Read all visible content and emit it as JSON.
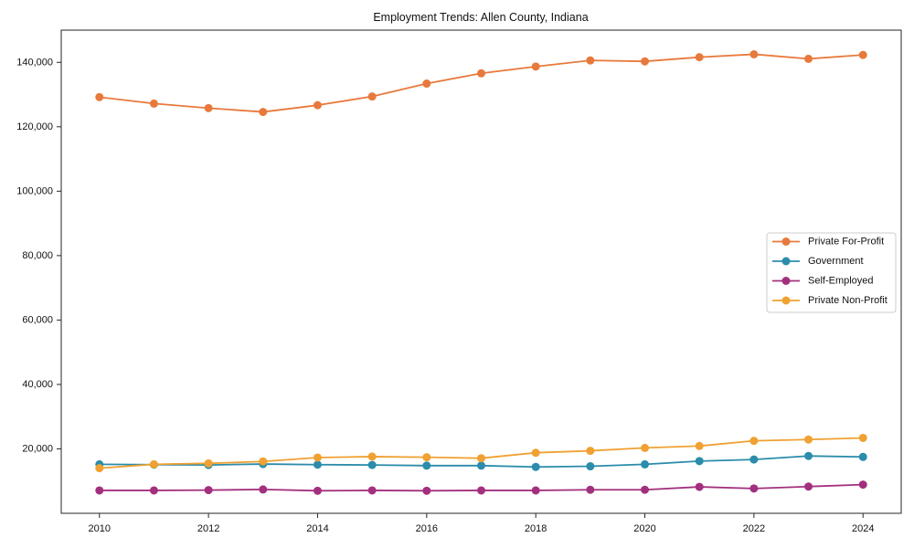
{
  "chart_data": {
    "type": "line",
    "title": "Employment Trends: Allen County, Indiana",
    "xlabel": "",
    "ylabel": "",
    "x": [
      2010,
      2011,
      2012,
      2013,
      2014,
      2015,
      2016,
      2017,
      2018,
      2019,
      2020,
      2021,
      2022,
      2023,
      2024
    ],
    "x_tick_labels": [
      "2010",
      "2012",
      "2014",
      "2016",
      "2018",
      "2020",
      "2022",
      "2024"
    ],
    "x_ticks": [
      2010,
      2012,
      2014,
      2016,
      2018,
      2020,
      2022,
      2024
    ],
    "y_ticks": [
      20000,
      40000,
      60000,
      80000,
      100000,
      120000,
      140000
    ],
    "y_tick_labels": [
      "20,000",
      "40,000",
      "60,000",
      "80,000",
      "100,000",
      "120,000",
      "140,000"
    ],
    "xlim": [
      2009.3,
      2024.7
    ],
    "ylim": [
      0,
      150000
    ],
    "grid": false,
    "legend_position": "center right",
    "background_color": "#ffffff",
    "spine_color": "#262626",
    "legend_border_color": "#cccccc",
    "series": [
      {
        "name": "Private For-Profit",
        "color": "#e8793c",
        "values": [
          129200,
          127200,
          125800,
          124600,
          126700,
          129400,
          133400,
          136600,
          138700,
          140600,
          140300,
          141600,
          142500,
          141100,
          142300
        ]
      },
      {
        "name": "Government",
        "color": "#2b8cab",
        "values": [
          15200,
          15100,
          15000,
          15300,
          15100,
          15000,
          14800,
          14800,
          14400,
          14600,
          15200,
          16200,
          16700,
          17800,
          17500
        ]
      },
      {
        "name": "Self-Employed",
        "color": "#a3307e",
        "values": [
          7100,
          7100,
          7200,
          7400,
          7000,
          7100,
          7000,
          7100,
          7100,
          7300,
          7300,
          8200,
          7700,
          8300,
          8900
        ]
      },
      {
        "name": "Private Non-Profit",
        "color": "#f0a132",
        "values": [
          14000,
          15200,
          15500,
          16100,
          17300,
          17600,
          17400,
          17100,
          18800,
          19400,
          20300,
          20900,
          22500,
          22900,
          23400
        ]
      }
    ]
  }
}
